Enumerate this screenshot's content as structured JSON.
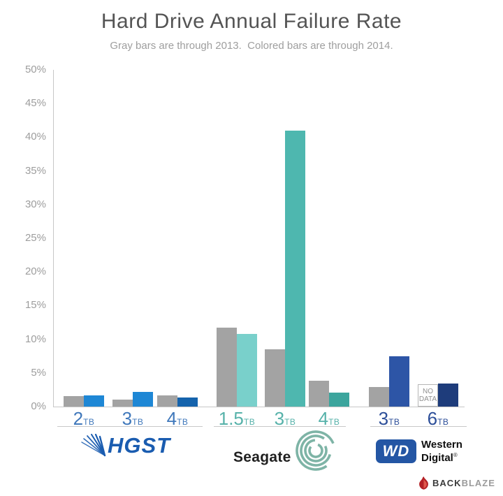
{
  "title": "Hard Drive Annual Failure Rate",
  "subtitle": "Gray bars are through 2013.  Colored bars are through 2014.",
  "chart_data": {
    "type": "bar",
    "title": "Hard Drive Annual Failure Rate",
    "subtitle": "Gray bars are through 2013.  Colored bars are through 2014.",
    "ylim": [
      0,
      50
    ],
    "ytick_step": 5,
    "ytick_suffix": "%",
    "grid": false,
    "gray_color": "#a3a3a3",
    "axis_color": "#c6c6c6",
    "legend": {
      "gray": "through 2013",
      "colored": "through 2014"
    },
    "no_data_line1": "NO",
    "no_data_line2": "DATA",
    "groups": [
      {
        "vendor": "HGST",
        "label_color": "#4078bb",
        "bars": [
          {
            "capacity": "2",
            "unit": "TB",
            "v2013": 1.6,
            "v2014": 1.7,
            "color2014": "#1e87d5"
          },
          {
            "capacity": "3",
            "unit": "TB",
            "v2013": 1.0,
            "v2014": 2.2,
            "color2014": "#1e87d5"
          },
          {
            "capacity": "4",
            "unit": "TB",
            "v2013": 1.7,
            "v2014": 1.3,
            "color2014": "#1563ac"
          }
        ]
      },
      {
        "vendor": "Seagate",
        "label_color": "#57b2aa",
        "bars": [
          {
            "capacity": "1.5",
            "unit": "TB",
            "v2013": 11.7,
            "v2014": 10.8,
            "color2014": "#79d0cb"
          },
          {
            "capacity": "3",
            "unit": "TB",
            "v2013": 8.5,
            "v2014": 41.0,
            "color2014": "#4eb7af"
          },
          {
            "capacity": "4",
            "unit": "TB",
            "v2013": 3.8,
            "v2014": 2.1,
            "color2014": "#3ca59d"
          }
        ]
      },
      {
        "vendor": "Western Digital",
        "label_color": "#2d4f99",
        "bars": [
          {
            "capacity": "3",
            "unit": "TB",
            "v2013": 2.9,
            "v2014": 7.5,
            "color2014": "#2d55a6"
          },
          {
            "capacity": "6",
            "unit": "TB",
            "v2013": null,
            "no_data_2013": true,
            "v2014": 3.4,
            "color2014": "#1e3c7b"
          }
        ]
      }
    ]
  },
  "branding": {
    "hgst_text": "HGST",
    "seagate_text": "Seagate",
    "wd_badge_text": "WD",
    "wd_line1": "Western",
    "wd_line2": "Digital",
    "wd_reg_mark": "®",
    "backblaze_back": "BACK",
    "backblaze_blaze": "BLAZE"
  }
}
